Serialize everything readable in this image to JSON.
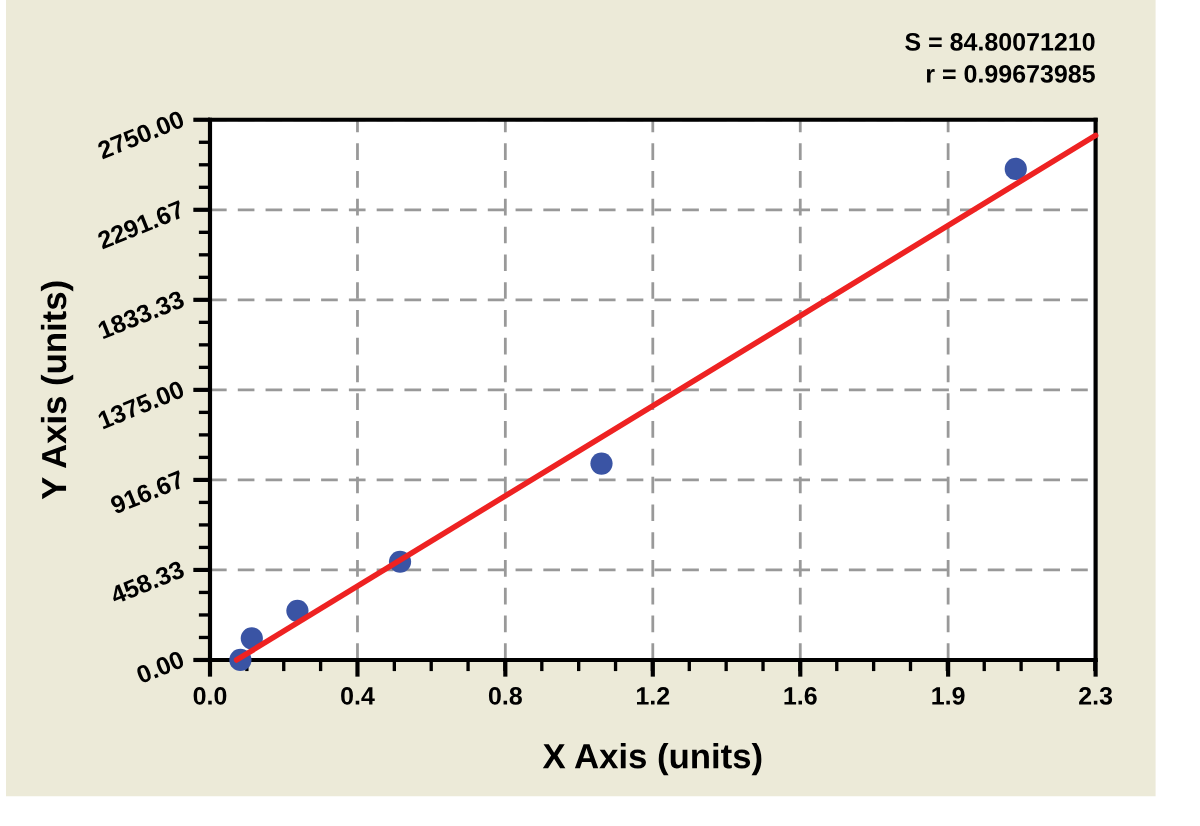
{
  "chart_data": {
    "type": "scatter",
    "xlabel": "X Axis (units)",
    "ylabel": "Y Axis (units)",
    "annotations": [
      "S = 84.80071210",
      "r = 0.99673985"
    ],
    "xlim": [
      0,
      2.33
    ],
    "xticks": [
      {
        "value": 0,
        "label": "0.0"
      },
      {
        "value": 0.388,
        "label": "0.4"
      },
      {
        "value": 0.777,
        "label": "0.8"
      },
      {
        "value": 1.165,
        "label": "1.2"
      },
      {
        "value": 1.553,
        "label": "1.6"
      },
      {
        "value": 1.942,
        "label": "1.9"
      },
      {
        "value": 2.33,
        "label": "2.3"
      }
    ],
    "ylim": [
      0,
      2750
    ],
    "yticks": [
      {
        "value": 0,
        "label": "0.00"
      },
      458.33,
      916.67,
      {
        "value": 1375,
        "label": "1375.00"
      },
      1833.33,
      2291.67,
      {
        "value": 2750,
        "label": "2750.00"
      }
    ],
    "grid": true,
    "series": [
      {
        "color": "#3a54a4",
        "marker": "circle",
        "x": [
          0.08,
          0.11,
          0.23,
          0.5,
          1.03,
          2.12
        ],
        "values": [
          0,
          110,
          250,
          500,
          1000,
          2500
        ]
      },
      {
        "type": "line",
        "color": "#ee2222",
        "line_style": "solid",
        "x": [
          0.07,
          2.33
        ],
        "values": [
          0,
          2670
        ]
      }
    ]
  }
}
